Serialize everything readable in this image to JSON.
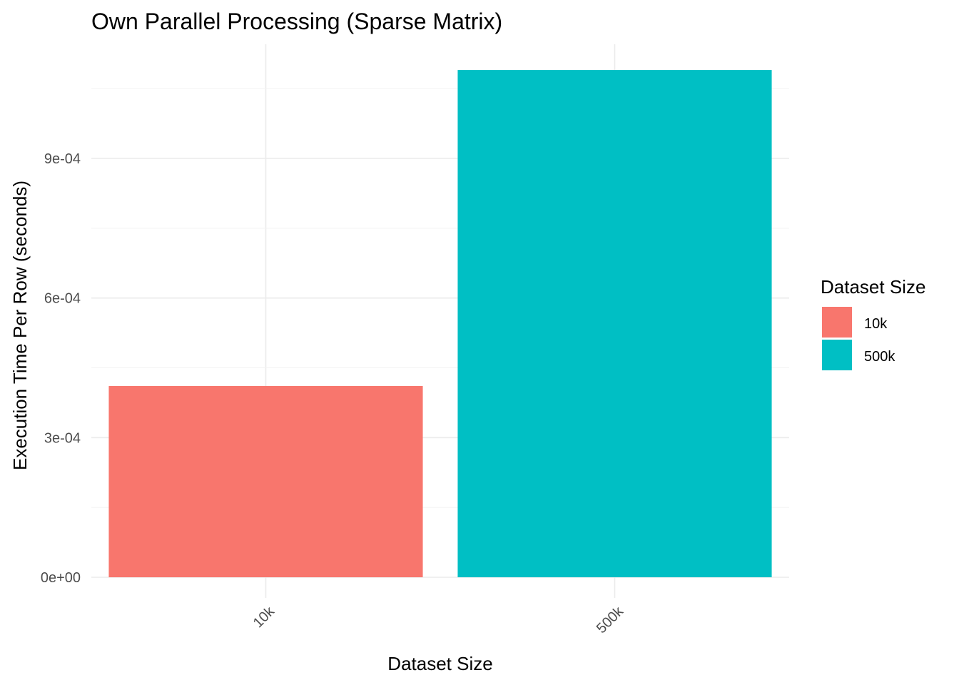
{
  "chart_data": {
    "type": "bar",
    "title": "Own Parallel Processing (Sparse Matrix)",
    "xlabel": "Dataset Size",
    "ylabel": "Execution Time Per Row (seconds)",
    "categories": [
      "10k",
      "500k"
    ],
    "values": [
      0.000411,
      0.00109
    ],
    "colors": [
      "#F8766D",
      "#00BFC4"
    ],
    "ylim": [
      0,
      0.00112
    ],
    "yticks": [
      0,
      0.0003,
      0.0006,
      0.0009
    ],
    "ytick_labels": [
      "0e+00",
      "3e-04",
      "6e-04",
      "9e-04"
    ],
    "grid": true,
    "legend": {
      "title": "Dataset Size",
      "position": "right",
      "entries": [
        {
          "label": "10k",
          "color": "#F8766D"
        },
        {
          "label": "500k",
          "color": "#00BFC4"
        }
      ]
    }
  }
}
